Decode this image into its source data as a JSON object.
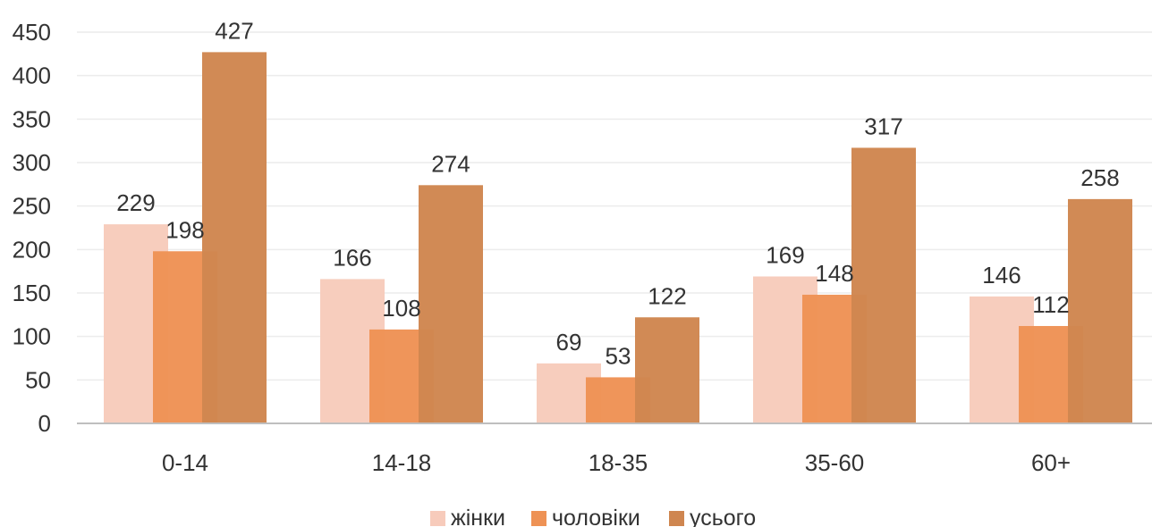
{
  "chart_data": {
    "type": "bar",
    "categories": [
      "0-14",
      "14-18",
      "18-35",
      "35-60",
      "60+"
    ],
    "series": [
      {
        "name": "жінки",
        "values": [
          229,
          166,
          69,
          169,
          146
        ],
        "color": "#f7cbbb",
        "label_color": "#333333"
      },
      {
        "name": "чоловіки",
        "values": [
          198,
          108,
          53,
          148,
          112
        ],
        "color": "#ee9255",
        "label_color": "#333333"
      },
      {
        "name": "усього",
        "values": [
          427,
          274,
          122,
          317,
          258
        ],
        "color": "#cf8650",
        "label_color": "#333333"
      }
    ],
    "ylim": [
      0,
      450
    ],
    "y_ticks": [
      0,
      50,
      100,
      150,
      200,
      250,
      300,
      350,
      400,
      450
    ],
    "grid": true,
    "legend_position": "bottom",
    "colors": {
      "gridline": "#ececec",
      "axis": "#bfbfbf",
      "text": "#333333"
    }
  }
}
